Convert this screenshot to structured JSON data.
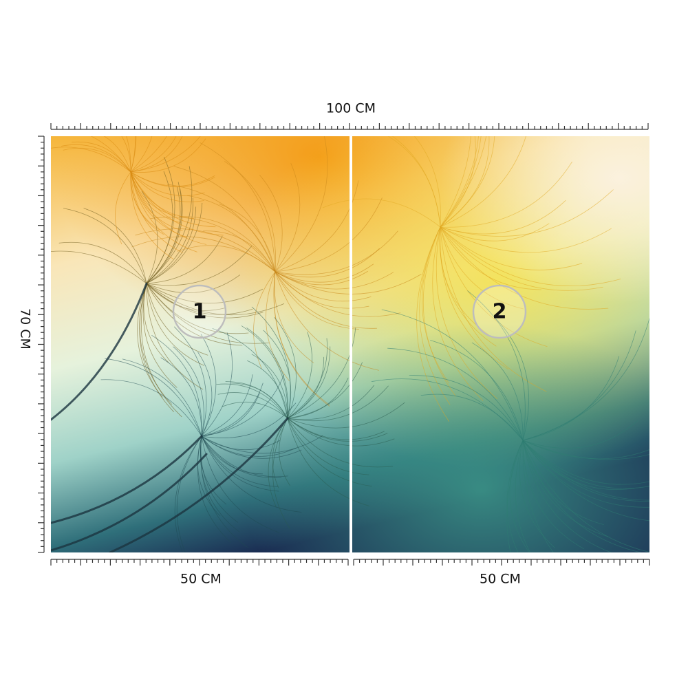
{
  "dimensions": {
    "width": "100 CM",
    "height": "70 CM",
    "panel_widths": [
      "50 CM",
      "50 CM"
    ]
  },
  "panels": [
    {
      "label": "1"
    },
    {
      "label": "2"
    }
  ]
}
